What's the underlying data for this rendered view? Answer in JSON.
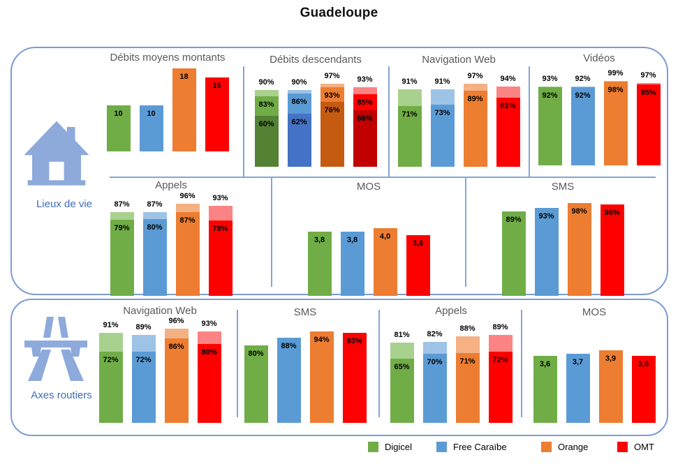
{
  "page_title": "Guadeloupe",
  "panels": [
    {
      "label": "Lieux de vie",
      "icon": "house-icon"
    },
    {
      "label": "Axes routiers",
      "icon": "motorway-icon"
    }
  ],
  "legend": {
    "items": [
      {
        "label": "Digicel",
        "color": "#70AD47",
        "light": "#A9D18E",
        "dark": "#548235"
      },
      {
        "label": "Free Caraïbe",
        "color": "#5B9BD5",
        "light": "#9DC3E6",
        "dark": "#4472C4"
      },
      {
        "label": "Orange",
        "color": "#ED7D31",
        "light": "#F4B183",
        "dark": "#C55A11"
      },
      {
        "label": "OMT",
        "color": "#FF0000",
        "light": "#FB8383",
        "dark": "#C00000"
      }
    ]
  },
  "icon_colors": {
    "pictogram_blue": "#8EAADB",
    "border_blue": "#7C9BD6",
    "label_blue": "#3E6CC0",
    "title_gray": "#595959"
  },
  "chart_data": {
    "type": "bar",
    "operators": [
      "Digicel",
      "Free Caraïbe",
      "Orange",
      "OMT"
    ],
    "groups": [
      {
        "panel": "Lieux de vie",
        "title": "Débits moyens montants",
        "kind": "simple",
        "labels": [
          "10",
          "10",
          "18",
          "16"
        ],
        "values": [
          10,
          10,
          18,
          16
        ],
        "ylim": [
          0,
          18.5
        ]
      },
      {
        "panel": "Lieux de vie",
        "title": "Débits descendants",
        "kind": "stacked3",
        "totals": [
          90,
          90,
          97,
          93
        ],
        "mid": [
          83,
          86,
          93,
          85
        ],
        "low": [
          60,
          62,
          76,
          66
        ],
        "ylim": [
          0,
          100
        ]
      },
      {
        "panel": "Lieux de vie",
        "title": "Navigation Web",
        "kind": "stacked2",
        "totals": [
          91,
          91,
          97,
          94
        ],
        "inner": [
          71,
          73,
          89,
          81
        ],
        "ylim": [
          0,
          100
        ]
      },
      {
        "panel": "Lieux de vie",
        "title": "Vidéos",
        "kind": "stacked2",
        "totals": [
          93,
          92,
          99,
          97
        ],
        "inner": [
          92,
          92,
          98,
          95
        ],
        "ylim": [
          0,
          100
        ]
      },
      {
        "panel": "Lieux de vie",
        "title": "Appels",
        "kind": "stacked2",
        "totals": [
          87,
          87,
          96,
          93
        ],
        "inner": [
          79,
          80,
          87,
          78
        ],
        "ylim": [
          0,
          100
        ]
      },
      {
        "panel": "Lieux de vie",
        "title": "MOS",
        "kind": "simple",
        "labels": [
          "3,8",
          "3,8",
          "4,0",
          "3,6"
        ],
        "values": [
          3.8,
          3.8,
          4.0,
          3.6
        ],
        "ylim": [
          0,
          5.6
        ]
      },
      {
        "panel": "Lieux de vie",
        "title": "SMS",
        "kind": "simple",
        "labels": [
          "89%",
          "93%",
          "98%",
          "96%"
        ],
        "values": [
          89,
          93,
          98,
          96
        ],
        "ylim": [
          0,
          100
        ]
      },
      {
        "panel": "Axes routiers",
        "title": "Navigation Web",
        "kind": "stacked2",
        "totals": [
          91,
          89,
          96,
          93
        ],
        "inner": [
          72,
          72,
          86,
          80
        ],
        "ylim": [
          0,
          100
        ]
      },
      {
        "panel": "Axes routiers",
        "title": "SMS",
        "kind": "simple",
        "labels": [
          "80%",
          "88%",
          "94%",
          "93%"
        ],
        "values": [
          80,
          88,
          94,
          93
        ],
        "ylim": [
          0,
          100
        ]
      },
      {
        "panel": "Axes routiers",
        "title": "Appels",
        "kind": "stacked2",
        "totals": [
          81,
          82,
          88,
          89
        ],
        "inner": [
          65,
          70,
          71,
          72
        ],
        "ylim": [
          0,
          100
        ]
      },
      {
        "panel": "Axes routiers",
        "title": "MOS",
        "kind": "simple",
        "labels": [
          "3,6",
          "3,7",
          "3,9",
          "3,6"
        ],
        "values": [
          3.6,
          3.7,
          3.9,
          3.6
        ],
        "ylim": [
          0,
          5.2
        ]
      }
    ]
  }
}
